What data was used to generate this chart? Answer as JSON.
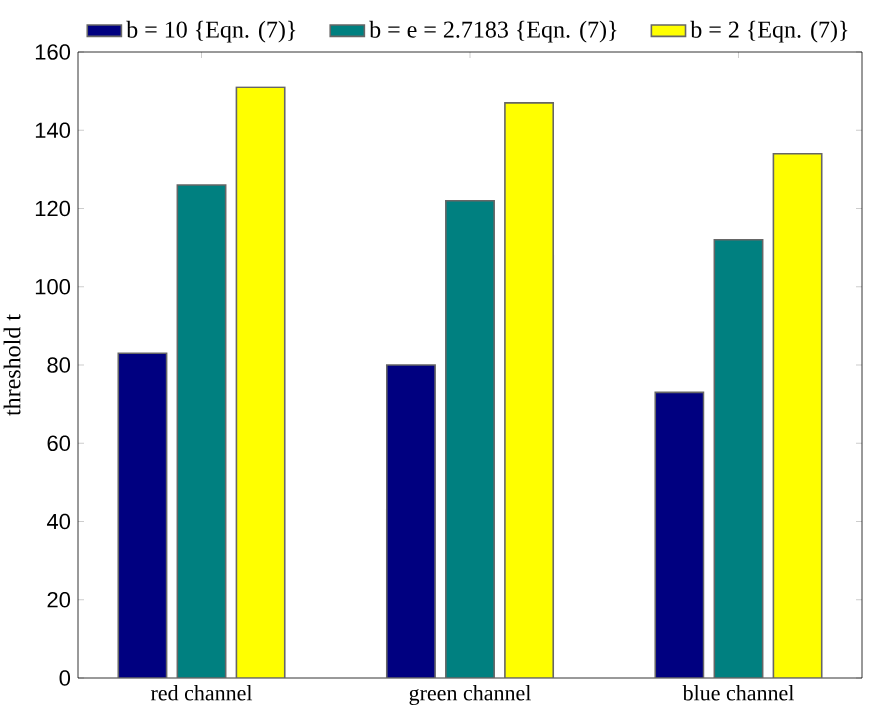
{
  "chart_data": {
    "type": "bar",
    "ylabel": "threshold t",
    "categories": [
      "red channel",
      "green channel",
      "blue channel"
    ],
    "series": [
      {
        "name": "b = 10 {Eqn. (7)}",
        "color": "#000080",
        "values": [
          83,
          80,
          73
        ]
      },
      {
        "name": "b = e = 2.7183 {Eqn. (7)}",
        "color": "#008080",
        "values": [
          126,
          122,
          112
        ]
      },
      {
        "name": "b = 2 {Eqn. (7)}",
        "color": "#ffff00",
        "values": [
          151,
          147,
          134
        ]
      }
    ],
    "ylim": [
      0,
      160
    ],
    "yticks": [
      0,
      20,
      40,
      60,
      80,
      100,
      120,
      140,
      160
    ],
    "grid": false,
    "legend": "top"
  }
}
